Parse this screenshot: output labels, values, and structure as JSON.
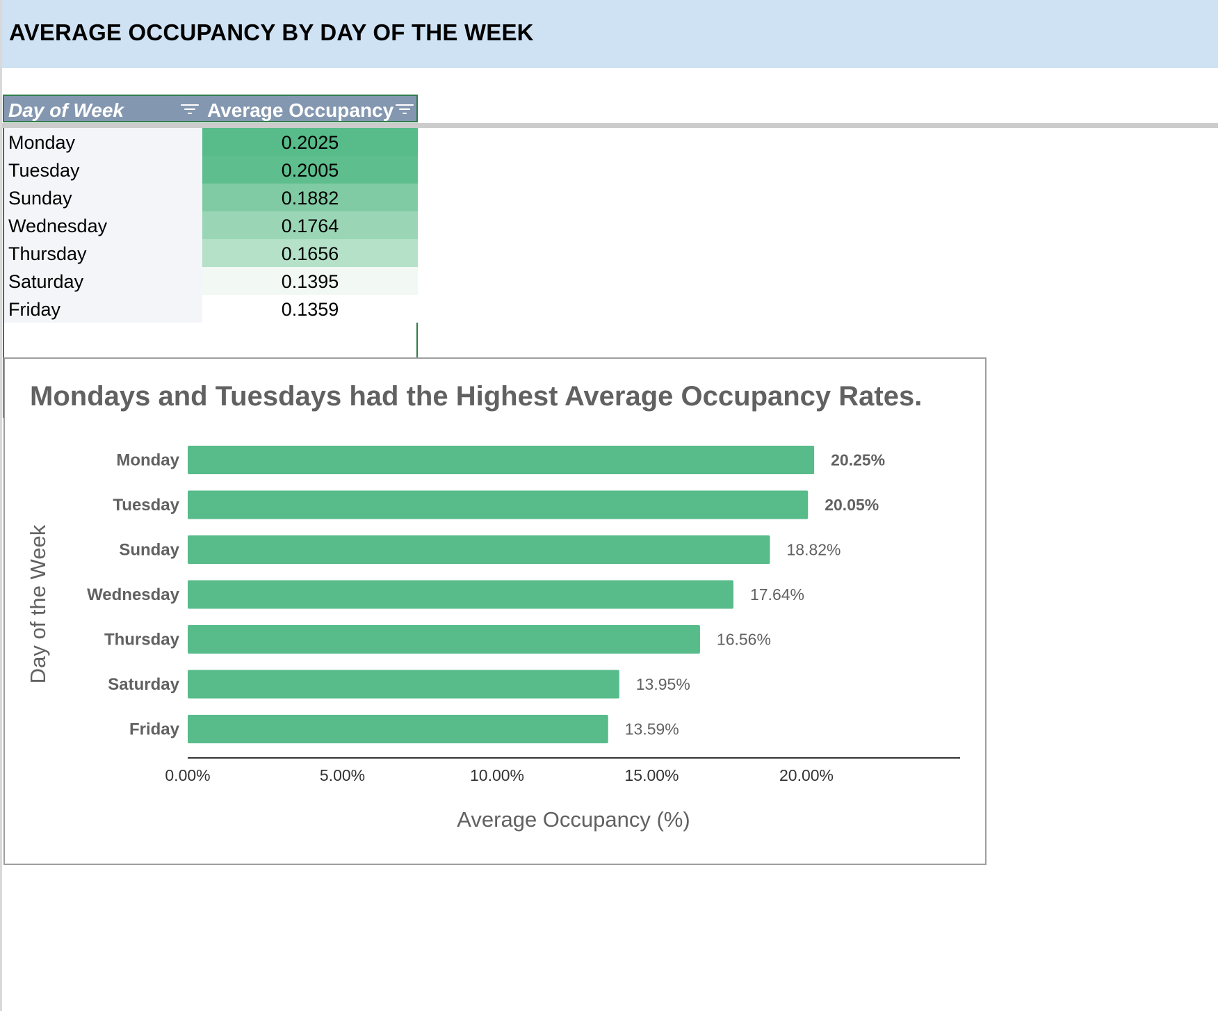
{
  "sheet": {
    "title": "AVERAGE OCCUPANCY BY DAY OF THE WEEK",
    "table": {
      "headers": [
        "Day of Week",
        "Average Occupancy"
      ],
      "rows": [
        {
          "day": "Monday",
          "value": "0.2025",
          "fill": "#57bb8a"
        },
        {
          "day": "Tuesday",
          "value": "0.2005",
          "fill": "#5ebe8e"
        },
        {
          "day": "Sunday",
          "value": "0.1882",
          "fill": "#80cba4"
        },
        {
          "day": "Wednesday",
          "value": "0.1764",
          "fill": "#9ad6b6"
        },
        {
          "day": "Thursday",
          "value": "0.1656",
          "fill": "#b5e1c9"
        },
        {
          "day": "Saturday",
          "value": "0.1395",
          "fill": "#f2f9f5"
        },
        {
          "day": "Friday",
          "value": "0.1359",
          "fill": "#ffffff"
        }
      ]
    }
  },
  "colors": {
    "title_band": "#cfe2f3",
    "header_fill": "#8497b0",
    "bar": "#57bb8a",
    "chart_text": "#616161",
    "table_border": "#2e7d4a"
  },
  "chart_data": {
    "type": "bar",
    "orientation": "horizontal",
    "title": "Mondays and Tuesdays had the Highest Average Occupancy Rates.",
    "xlabel": "Average Occupancy (%)",
    "ylabel": "Day of the Week",
    "categories": [
      "Monday",
      "Tuesday",
      "Sunday",
      "Wednesday",
      "Thursday",
      "Saturday",
      "Friday"
    ],
    "values": [
      20.25,
      20.05,
      18.82,
      17.64,
      16.56,
      13.95,
      13.59
    ],
    "data_labels": [
      "20.25%",
      "20.05%",
      "18.82%",
      "17.64%",
      "16.56%",
      "13.95%",
      "13.59%"
    ],
    "bold_labels": [
      true,
      true,
      false,
      false,
      false,
      false,
      false
    ],
    "xticks": [
      0,
      5,
      10,
      15,
      20
    ],
    "xtick_labels": [
      "0.00%",
      "5.00%",
      "10.00%",
      "15.00%",
      "20.00%"
    ],
    "xlim": [
      0,
      25
    ],
    "grid": false,
    "legend": "none"
  }
}
